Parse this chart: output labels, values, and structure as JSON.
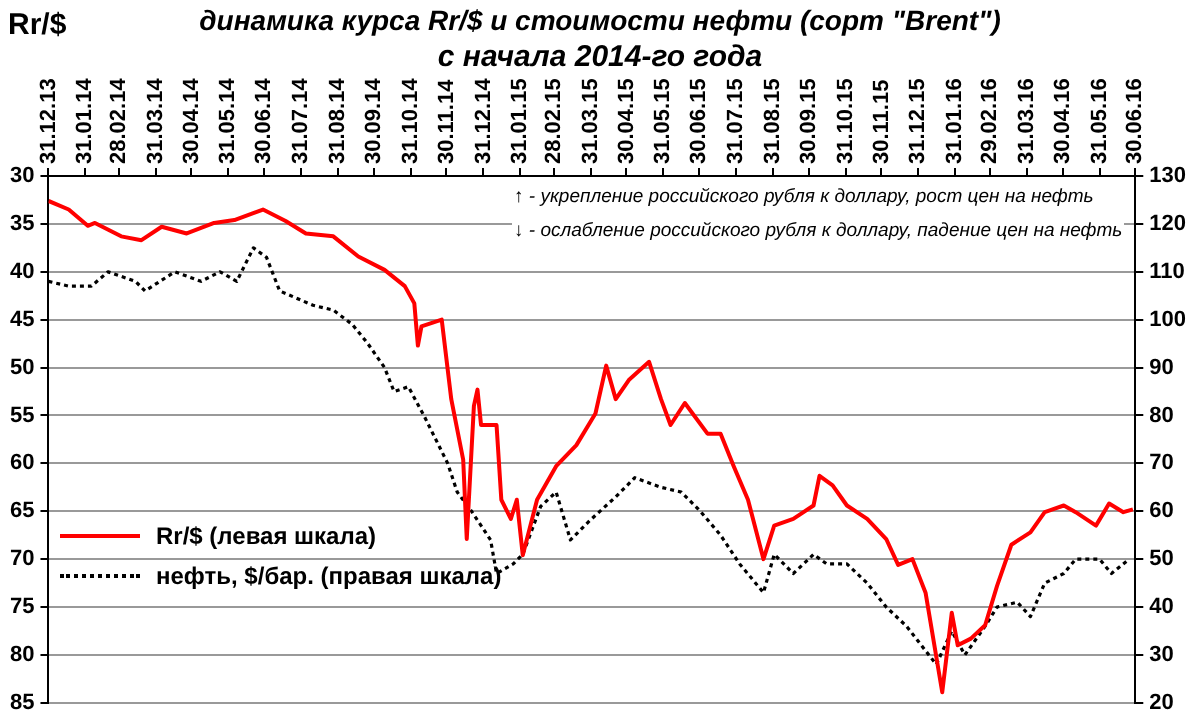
{
  "chart_data": {
    "type": "line",
    "title": "динамика  курса Rr/$ и стоимости нефти (сорт \"Brent\")",
    "subtitle": "с начала 2014-го года",
    "ylabel": "Rr/$",
    "annotations": [
      "↑ - укрепление российского рубля к доллару, рост цен на нефть",
      "↓ - ослабление российского рубля к доллару, падение цен на нефть"
    ],
    "xlim": [
      "2013-12-31",
      "2016-06-30"
    ],
    "xticks": [
      {
        "value": "2013-12-31",
        "label": "31.12.13"
      },
      {
        "value": "2014-01-31",
        "label": "31.01.14"
      },
      {
        "value": "2014-02-28",
        "label": "28.02.14"
      },
      {
        "value": "2014-03-31",
        "label": "31.03.14"
      },
      {
        "value": "2014-04-30",
        "label": "30.04.14"
      },
      {
        "value": "2014-05-31",
        "label": "31.05.14"
      },
      {
        "value": "2014-06-30",
        "label": "30.06.14"
      },
      {
        "value": "2014-07-31",
        "label": "31.07.14"
      },
      {
        "value": "2014-08-31",
        "label": "31.08.14"
      },
      {
        "value": "2014-09-30",
        "label": "30.09.14"
      },
      {
        "value": "2014-10-31",
        "label": "31.10.14"
      },
      {
        "value": "2014-11-30",
        "label": "30.11.14"
      },
      {
        "value": "2014-12-31",
        "label": "31.12.14"
      },
      {
        "value": "2015-01-31",
        "label": "31.01.15"
      },
      {
        "value": "2015-02-28",
        "label": "28.02.15"
      },
      {
        "value": "2015-03-31",
        "label": "31.03.15"
      },
      {
        "value": "2015-04-30",
        "label": "30.04.15"
      },
      {
        "value": "2015-05-31",
        "label": "31.05.15"
      },
      {
        "value": "2015-06-30",
        "label": "30.06.15"
      },
      {
        "value": "2015-07-31",
        "label": "31.07.15"
      },
      {
        "value": "2015-08-31",
        "label": "31.08.15"
      },
      {
        "value": "2015-09-30",
        "label": "30.09.15"
      },
      {
        "value": "2015-10-31",
        "label": "31.10.15"
      },
      {
        "value": "2015-11-30",
        "label": "30.11.15"
      },
      {
        "value": "2015-12-31",
        "label": "31.12.15"
      },
      {
        "value": "2016-01-31",
        "label": "31.01.16"
      },
      {
        "value": "2016-02-29",
        "label": "29.02.16"
      },
      {
        "value": "2016-03-31",
        "label": "31.03.16"
      },
      {
        "value": "2016-04-30",
        "label": "30.04.16"
      },
      {
        "value": "2016-05-31",
        "label": "31.05.16"
      },
      {
        "value": "2016-06-30",
        "label": "30.06.16"
      }
    ],
    "ylim": [
      85,
      30
    ],
    "yticks": [
      30,
      35,
      40,
      45,
      50,
      55,
      60,
      65,
      70,
      75,
      80,
      85
    ],
    "y2lim": [
      20,
      130
    ],
    "y2ticks": [
      20,
      30,
      40,
      50,
      60,
      70,
      80,
      90,
      100,
      110,
      120,
      130
    ],
    "grid": "y",
    "legend": "bottom left",
    "marker": "none",
    "series": [
      {
        "name": "Rr/$  (левая шкала)",
        "color": "#ff0000",
        "line_style": "solid",
        "x": [
          "2013-12-31",
          "2014-01-17",
          "2014-02-02",
          "2014-02-08",
          "2014-03-02",
          "2014-03-19",
          "2014-04-05",
          "2014-04-26",
          "2014-05-19",
          "2014-06-05",
          "2014-06-29",
          "2014-07-18",
          "2014-08-04",
          "2014-08-27",
          "2014-09-17",
          "2014-10-09",
          "2014-10-26",
          "2014-11-03",
          "2014-11-06",
          "2014-11-09",
          "2014-11-26",
          "2014-12-04",
          "2014-12-14",
          "2014-12-17",
          "2014-12-23",
          "2014-12-26",
          "2014-12-29",
          "2015-01-11",
          "2015-01-15",
          "2015-01-23",
          "2015-01-28",
          "2015-02-02",
          "2015-02-14",
          "2015-03-02",
          "2015-03-19",
          "2015-04-04",
          "2015-04-13",
          "2015-04-21",
          "2015-05-02",
          "2015-05-19",
          "2015-05-29",
          "2015-06-06",
          "2015-06-18",
          "2015-07-07",
          "2015-07-18",
          "2015-07-29",
          "2015-08-10",
          "2015-08-23",
          "2015-09-01",
          "2015-09-17",
          "2015-10-04",
          "2015-10-09",
          "2015-10-20",
          "2015-11-01",
          "2015-11-18",
          "2015-12-04",
          "2015-12-14",
          "2015-12-26",
          "2016-01-06",
          "2016-01-20",
          "2016-01-28",
          "2016-02-02",
          "2016-02-13",
          "2016-02-25",
          "2016-03-06",
          "2016-03-18",
          "2016-04-03",
          "2016-04-15",
          "2016-05-01",
          "2016-05-11",
          "2016-05-28",
          "2016-06-08",
          "2016-06-20",
          "2016-06-28"
        ],
        "values": [
          32.6,
          33.5,
          35.2,
          34.9,
          36.3,
          36.7,
          35.3,
          36.0,
          34.9,
          34.6,
          33.5,
          34.7,
          36.0,
          36.3,
          38.4,
          39.8,
          41.5,
          43.3,
          47.7,
          45.7,
          45.0,
          53.3,
          59.6,
          67.9,
          54.0,
          52.3,
          56.0,
          56.0,
          63.8,
          65.8,
          63.8,
          69.6,
          63.8,
          60.3,
          58.1,
          54.8,
          49.8,
          53.3,
          51.3,
          49.4,
          53.3,
          56.0,
          53.7,
          56.9,
          56.9,
          60.3,
          63.8,
          70.0,
          66.5,
          65.8,
          64.4,
          61.3,
          62.3,
          64.4,
          65.8,
          67.9,
          70.6,
          70.0,
          73.5,
          83.9,
          75.6,
          79.0,
          78.3,
          76.9,
          72.8,
          68.5,
          67.2,
          65.1,
          64.4,
          65.1,
          66.5,
          64.2,
          65.1,
          64.8
        ]
      },
      {
        "name": "нефть, $/бар. (правая шкала)",
        "color": "#000000",
        "line_style": "dotted",
        "axis": "y2",
        "x": [
          "2013-12-31",
          "2014-01-17",
          "2014-02-05",
          "2014-02-19",
          "2014-03-14",
          "2014-03-22",
          "2014-04-16",
          "2014-05-08",
          "2014-05-24",
          "2014-06-07",
          "2014-06-21",
          "2014-07-02",
          "2014-07-13",
          "2014-08-10",
          "2014-08-27",
          "2014-09-12",
          "2014-09-25",
          "2014-10-09",
          "2014-10-17",
          "2014-10-29",
          "2014-11-11",
          "2014-12-01",
          "2014-12-09",
          "2014-12-21",
          "2015-01-06",
          "2015-01-11",
          "2015-01-25",
          "2015-02-02",
          "2015-02-17",
          "2015-03-02",
          "2015-03-14",
          "2015-03-30",
          "2015-04-21",
          "2015-05-07",
          "2015-05-29",
          "2015-06-15",
          "2015-07-01",
          "2015-07-18",
          "2015-08-03",
          "2015-08-23",
          "2015-09-01",
          "2015-09-17",
          "2015-10-04",
          "2015-10-15",
          "2015-11-01",
          "2015-11-18",
          "2015-12-04",
          "2015-12-21",
          "2016-01-15",
          "2016-01-28",
          "2016-02-08",
          "2016-02-25",
          "2016-03-06",
          "2016-03-23",
          "2016-04-03",
          "2016-04-15",
          "2016-05-01",
          "2016-05-11",
          "2016-05-31",
          "2016-06-10",
          "2016-06-25"
        ],
        "values": [
          108,
          107,
          107,
          110,
          108,
          106,
          110,
          108,
          110,
          108,
          115,
          113,
          106,
          103,
          102,
          99,
          95,
          90,
          85,
          86,
          80,
          70,
          64,
          60,
          54,
          47,
          49,
          51,
          61,
          64,
          54,
          58,
          63,
          67,
          65,
          64,
          60,
          55,
          49,
          43,
          51,
          47,
          51,
          49,
          49,
          45,
          40,
          36,
          28,
          35,
          30,
          36,
          40,
          41,
          38,
          45,
          47,
          50,
          50,
          47,
          50
        ]
      }
    ]
  }
}
